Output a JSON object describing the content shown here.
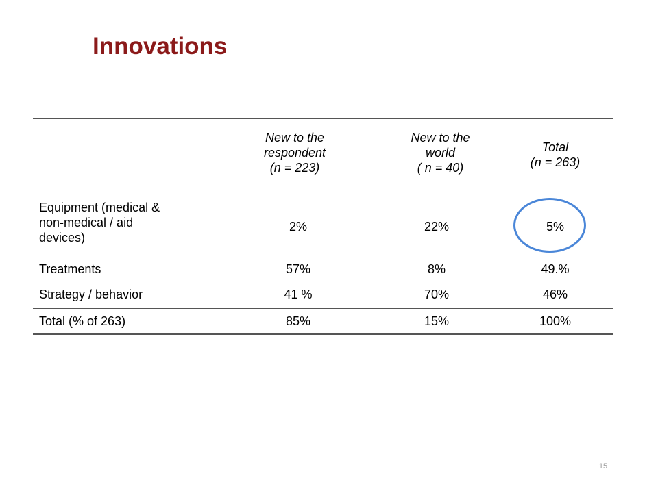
{
  "slide": {
    "title": "Innovations",
    "page_number": "15"
  },
  "table": {
    "headers": [
      "",
      "New to the\nrespondent\n(n = 223)",
      "New to the\nworld\n( n = 40)",
      "Total\n(n = 263)"
    ],
    "rows": [
      {
        "label": "Equipment (medical &\nnon-medical / aid\ndevices)",
        "values": [
          "2%",
          "22%",
          "5%"
        ]
      },
      {
        "label": "Treatments",
        "values": [
          "57%",
          "8%",
          "49.%"
        ]
      },
      {
        "label": "Strategy / behavior",
        "values": [
          "41 %",
          "70%",
          "46%"
        ]
      }
    ],
    "total_row": {
      "label": "Total (% of 263)",
      "values": [
        "85%",
        "15%",
        "100%"
      ]
    }
  },
  "annotation": {
    "highlight_color": "#4a86d8",
    "highlighted_cell": "Equipment / Total"
  },
  "colors": {
    "title": "#8b1a1a"
  }
}
